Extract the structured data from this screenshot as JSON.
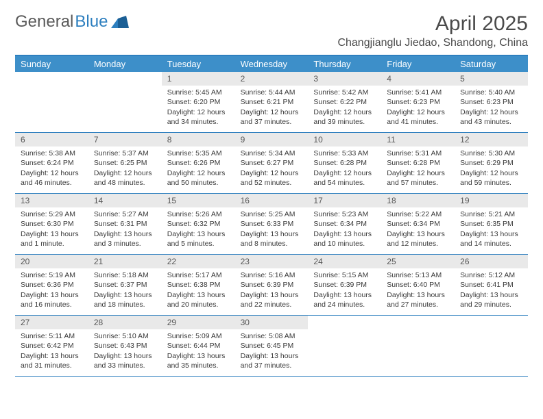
{
  "brand": {
    "part1": "General",
    "part2": "Blue"
  },
  "title": "April 2025",
  "location": "Changjianglu Jiedao, Shandong, China",
  "colors": {
    "header_bg": "#3d8fc9",
    "rule": "#2d7fbf",
    "daynum_bg": "#e9e9e9",
    "text": "#3a3a3a",
    "title_text": "#4a4a4a"
  },
  "day_names": [
    "Sunday",
    "Monday",
    "Tuesday",
    "Wednesday",
    "Thursday",
    "Friday",
    "Saturday"
  ],
  "weeks": [
    [
      {
        "day": "",
        "sunrise": "",
        "sunset": "",
        "daylight": ""
      },
      {
        "day": "",
        "sunrise": "",
        "sunset": "",
        "daylight": ""
      },
      {
        "day": "1",
        "sunrise": "Sunrise: 5:45 AM",
        "sunset": "Sunset: 6:20 PM",
        "daylight": "Daylight: 12 hours and 34 minutes."
      },
      {
        "day": "2",
        "sunrise": "Sunrise: 5:44 AM",
        "sunset": "Sunset: 6:21 PM",
        "daylight": "Daylight: 12 hours and 37 minutes."
      },
      {
        "day": "3",
        "sunrise": "Sunrise: 5:42 AM",
        "sunset": "Sunset: 6:22 PM",
        "daylight": "Daylight: 12 hours and 39 minutes."
      },
      {
        "day": "4",
        "sunrise": "Sunrise: 5:41 AM",
        "sunset": "Sunset: 6:23 PM",
        "daylight": "Daylight: 12 hours and 41 minutes."
      },
      {
        "day": "5",
        "sunrise": "Sunrise: 5:40 AM",
        "sunset": "Sunset: 6:23 PM",
        "daylight": "Daylight: 12 hours and 43 minutes."
      }
    ],
    [
      {
        "day": "6",
        "sunrise": "Sunrise: 5:38 AM",
        "sunset": "Sunset: 6:24 PM",
        "daylight": "Daylight: 12 hours and 46 minutes."
      },
      {
        "day": "7",
        "sunrise": "Sunrise: 5:37 AM",
        "sunset": "Sunset: 6:25 PM",
        "daylight": "Daylight: 12 hours and 48 minutes."
      },
      {
        "day": "8",
        "sunrise": "Sunrise: 5:35 AM",
        "sunset": "Sunset: 6:26 PM",
        "daylight": "Daylight: 12 hours and 50 minutes."
      },
      {
        "day": "9",
        "sunrise": "Sunrise: 5:34 AM",
        "sunset": "Sunset: 6:27 PM",
        "daylight": "Daylight: 12 hours and 52 minutes."
      },
      {
        "day": "10",
        "sunrise": "Sunrise: 5:33 AM",
        "sunset": "Sunset: 6:28 PM",
        "daylight": "Daylight: 12 hours and 54 minutes."
      },
      {
        "day": "11",
        "sunrise": "Sunrise: 5:31 AM",
        "sunset": "Sunset: 6:28 PM",
        "daylight": "Daylight: 12 hours and 57 minutes."
      },
      {
        "day": "12",
        "sunrise": "Sunrise: 5:30 AM",
        "sunset": "Sunset: 6:29 PM",
        "daylight": "Daylight: 12 hours and 59 minutes."
      }
    ],
    [
      {
        "day": "13",
        "sunrise": "Sunrise: 5:29 AM",
        "sunset": "Sunset: 6:30 PM",
        "daylight": "Daylight: 13 hours and 1 minute."
      },
      {
        "day": "14",
        "sunrise": "Sunrise: 5:27 AM",
        "sunset": "Sunset: 6:31 PM",
        "daylight": "Daylight: 13 hours and 3 minutes."
      },
      {
        "day": "15",
        "sunrise": "Sunrise: 5:26 AM",
        "sunset": "Sunset: 6:32 PM",
        "daylight": "Daylight: 13 hours and 5 minutes."
      },
      {
        "day": "16",
        "sunrise": "Sunrise: 5:25 AM",
        "sunset": "Sunset: 6:33 PM",
        "daylight": "Daylight: 13 hours and 8 minutes."
      },
      {
        "day": "17",
        "sunrise": "Sunrise: 5:23 AM",
        "sunset": "Sunset: 6:34 PM",
        "daylight": "Daylight: 13 hours and 10 minutes."
      },
      {
        "day": "18",
        "sunrise": "Sunrise: 5:22 AM",
        "sunset": "Sunset: 6:34 PM",
        "daylight": "Daylight: 13 hours and 12 minutes."
      },
      {
        "day": "19",
        "sunrise": "Sunrise: 5:21 AM",
        "sunset": "Sunset: 6:35 PM",
        "daylight": "Daylight: 13 hours and 14 minutes."
      }
    ],
    [
      {
        "day": "20",
        "sunrise": "Sunrise: 5:19 AM",
        "sunset": "Sunset: 6:36 PM",
        "daylight": "Daylight: 13 hours and 16 minutes."
      },
      {
        "day": "21",
        "sunrise": "Sunrise: 5:18 AM",
        "sunset": "Sunset: 6:37 PM",
        "daylight": "Daylight: 13 hours and 18 minutes."
      },
      {
        "day": "22",
        "sunrise": "Sunrise: 5:17 AM",
        "sunset": "Sunset: 6:38 PM",
        "daylight": "Daylight: 13 hours and 20 minutes."
      },
      {
        "day": "23",
        "sunrise": "Sunrise: 5:16 AM",
        "sunset": "Sunset: 6:39 PM",
        "daylight": "Daylight: 13 hours and 22 minutes."
      },
      {
        "day": "24",
        "sunrise": "Sunrise: 5:15 AM",
        "sunset": "Sunset: 6:39 PM",
        "daylight": "Daylight: 13 hours and 24 minutes."
      },
      {
        "day": "25",
        "sunrise": "Sunrise: 5:13 AM",
        "sunset": "Sunset: 6:40 PM",
        "daylight": "Daylight: 13 hours and 27 minutes."
      },
      {
        "day": "26",
        "sunrise": "Sunrise: 5:12 AM",
        "sunset": "Sunset: 6:41 PM",
        "daylight": "Daylight: 13 hours and 29 minutes."
      }
    ],
    [
      {
        "day": "27",
        "sunrise": "Sunrise: 5:11 AM",
        "sunset": "Sunset: 6:42 PM",
        "daylight": "Daylight: 13 hours and 31 minutes."
      },
      {
        "day": "28",
        "sunrise": "Sunrise: 5:10 AM",
        "sunset": "Sunset: 6:43 PM",
        "daylight": "Daylight: 13 hours and 33 minutes."
      },
      {
        "day": "29",
        "sunrise": "Sunrise: 5:09 AM",
        "sunset": "Sunset: 6:44 PM",
        "daylight": "Daylight: 13 hours and 35 minutes."
      },
      {
        "day": "30",
        "sunrise": "Sunrise: 5:08 AM",
        "sunset": "Sunset: 6:45 PM",
        "daylight": "Daylight: 13 hours and 37 minutes."
      },
      {
        "day": "",
        "sunrise": "",
        "sunset": "",
        "daylight": ""
      },
      {
        "day": "",
        "sunrise": "",
        "sunset": "",
        "daylight": ""
      },
      {
        "day": "",
        "sunrise": "",
        "sunset": "",
        "daylight": ""
      }
    ]
  ]
}
